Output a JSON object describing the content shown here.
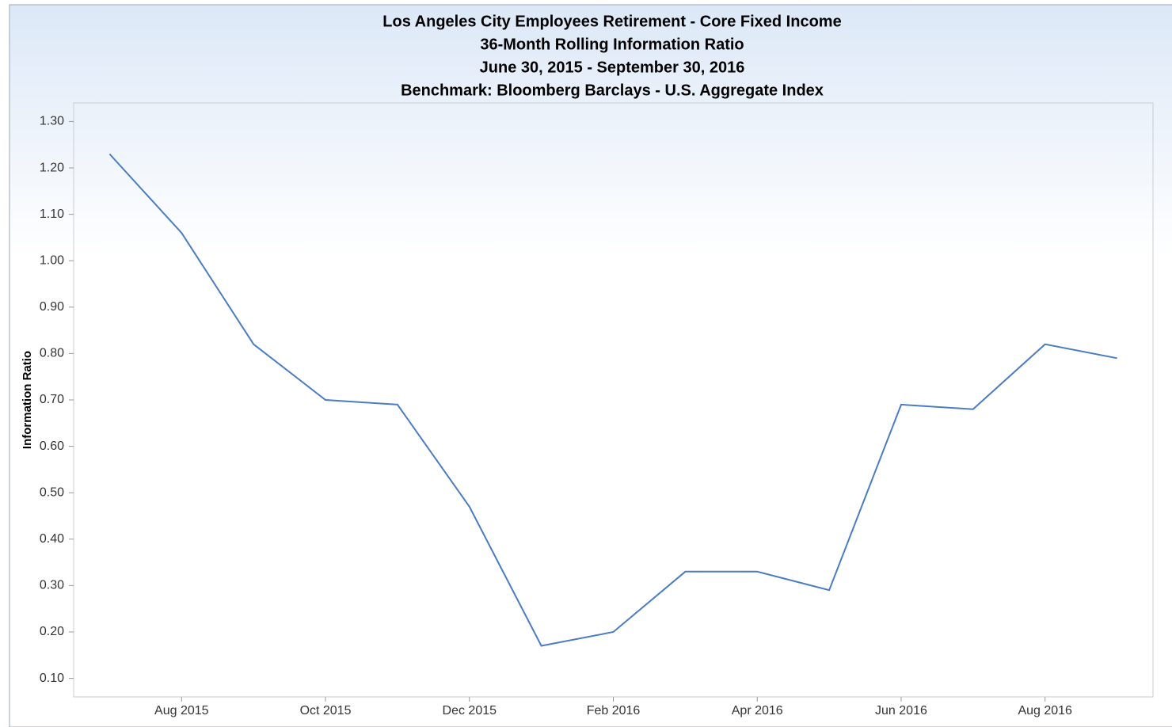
{
  "chart_data": {
    "type": "line",
    "title": "Los Angeles City Employees Retirement - Core Fixed Income",
    "subtitle": [
      "36-Month Rolling Information Ratio",
      "June 30, 2015 - September 30, 2016",
      "Benchmark: Bloomberg Barclays - U.S. Aggregate Index"
    ],
    "y_label": "Information Ratio",
    "categories": [
      null,
      "Aug 2015",
      null,
      "Oct 2015",
      null,
      "Dec 2015",
      null,
      "Feb 2016",
      null,
      "Apr 2016",
      null,
      "Jun 2016",
      null,
      "Aug 2016",
      null
    ],
    "series": [
      {
        "name": "Information Ratio",
        "color": "#4a7cc4",
        "values": [
          1.23,
          1.06,
          0.82,
          0.7,
          0.69,
          0.47,
          0.17,
          0.2,
          0.33,
          0.33,
          0.29,
          0.69,
          0.68,
          0.82,
          0.79
        ]
      }
    ],
    "ylim": [
      0.06,
      1.34
    ],
    "yticks": [
      {
        "value": 0.1,
        "label": "0.10"
      },
      {
        "value": 0.2,
        "label": "0.20"
      },
      {
        "value": 0.3,
        "label": "0.30"
      },
      {
        "value": 0.4,
        "label": "0.40"
      },
      {
        "value": 0.5,
        "label": "0.50"
      },
      {
        "value": 0.6,
        "label": "0.60"
      },
      {
        "value": 0.7,
        "label": "0.70"
      },
      {
        "value": 0.8,
        "label": "0.80"
      },
      {
        "value": 0.9,
        "label": "0.90"
      },
      {
        "value": 1.0,
        "label": "1.00"
      },
      {
        "value": 1.1,
        "label": "1.10"
      },
      {
        "value": 1.2,
        "label": "1.20"
      },
      {
        "value": 1.3,
        "label": "1.30"
      }
    ],
    "grid": false
  }
}
